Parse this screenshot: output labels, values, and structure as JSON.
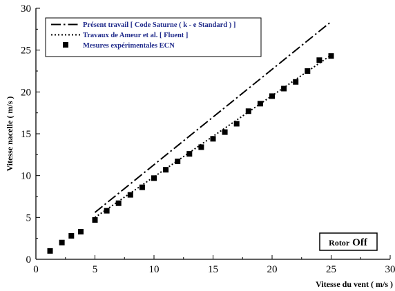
{
  "chart_data": {
    "type": "scatter",
    "xlabel": "Vitesse du vent ( m/s )",
    "ylabel": "Vitesse nacelle ( m/s )",
    "xlim": [
      0,
      30
    ],
    "ylim": [
      0,
      30
    ],
    "x_ticks": [
      "0",
      "5",
      "10",
      "15",
      "20",
      "25",
      "30"
    ],
    "y_ticks": [
      "0",
      "5",
      "10",
      "15",
      "20",
      "25",
      "30"
    ],
    "grid": false,
    "legend_position": "top-left",
    "series": [
      {
        "name": "Présent travail  [ Code Saturne ( k - e Standard ) ]",
        "style": "dash-dot line",
        "color": "#000000",
        "x": [
          5,
          25
        ],
        "y": [
          5.6,
          28.4
        ]
      },
      {
        "name": "Travaux de Ameur et al. [ Fluent ]",
        "style": "dotted line",
        "color": "#000000",
        "x": [
          5,
          25
        ],
        "y": [
          5.0,
          24.4
        ]
      },
      {
        "name": "Mesures expérimentales ECN",
        "style": "square markers",
        "color": "#000000",
        "x": [
          1.2,
          2.2,
          3.0,
          3.8,
          5.0,
          6.0,
          7.0,
          8.0,
          9.0,
          10.0,
          11.0,
          12.0,
          13.0,
          14.0,
          15.0,
          16.0,
          17.0,
          18.0,
          19.0,
          20.0,
          21.0,
          22.0,
          23.0,
          24.0,
          25.0
        ],
        "y": [
          1.0,
          2.0,
          2.8,
          3.3,
          4.7,
          5.8,
          6.7,
          7.7,
          8.6,
          9.7,
          10.7,
          11.7,
          12.6,
          13.4,
          14.4,
          15.2,
          16.2,
          17.7,
          18.6,
          19.5,
          20.4,
          21.2,
          22.5,
          23.8,
          24.3
        ]
      }
    ],
    "annotation": {
      "part1": "Rotor",
      "part2": "Off"
    }
  }
}
